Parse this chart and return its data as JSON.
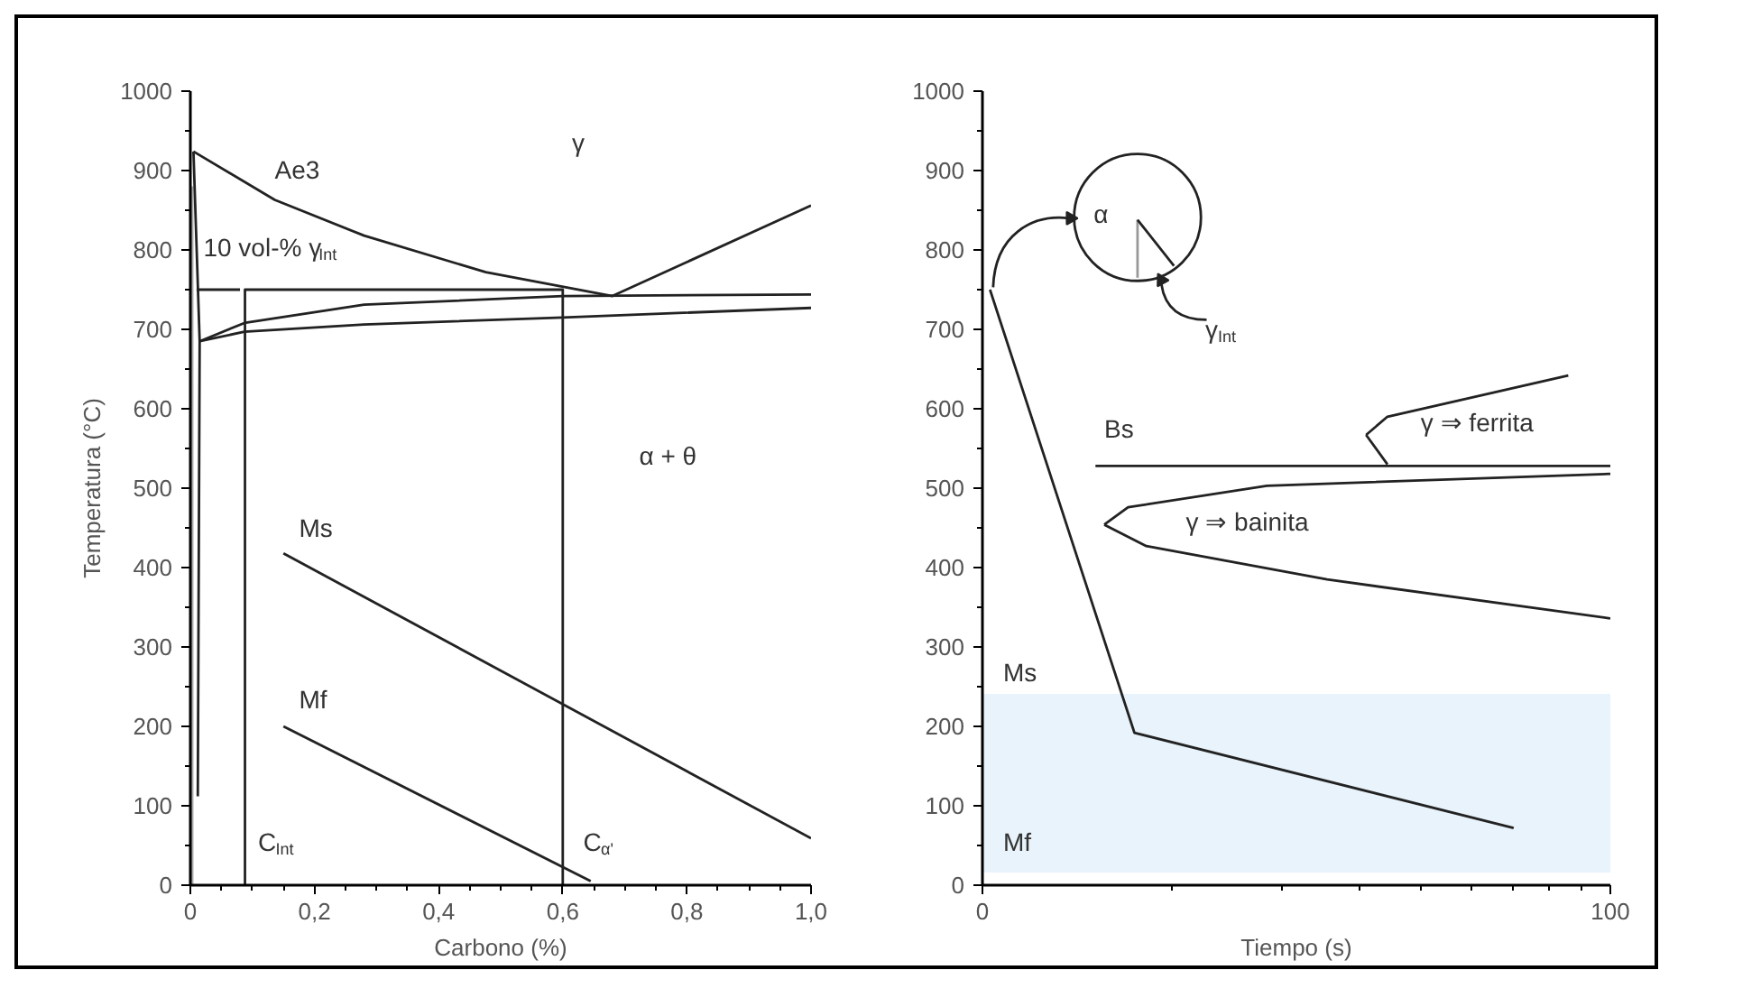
{
  "chart_data": [
    {
      "type": "line",
      "xlabel": "Carbono (%)",
      "ylabel": "Temperatura (°C)",
      "xlim": [
        0,
        1.0
      ],
      "ylim": [
        0,
        1000
      ],
      "xticks": [
        0,
        {
          "value": 0.05,
          "label": null
        },
        {
          "value": 0.2,
          "label": "0,2"
        },
        {
          "value": 0.1,
          "label": null
        },
        {
          "value": 0.15,
          "label": null
        },
        {
          "value": 0.25,
          "label": null
        },
        {
          "value": 0.3,
          "label": null
        },
        {
          "value": 0.35,
          "label": null
        },
        {
          "value": 0.4,
          "label": "0,4"
        },
        {
          "value": 0.45,
          "label": null
        },
        {
          "value": 0.5,
          "label": null
        },
        {
          "value": 0.55,
          "label": null
        },
        {
          "value": 0.6,
          "label": "0,6"
        },
        {
          "value": 0.65,
          "label": null
        },
        {
          "value": 0.7,
          "label": null
        },
        {
          "value": 0.75,
          "label": null
        },
        {
          "value": 0.8,
          "label": "0,8"
        },
        {
          "value": 0.85,
          "label": null
        },
        {
          "value": 0.9,
          "label": null
        },
        {
          "value": 0.95,
          "label": null
        },
        {
          "value": 1.0,
          "label": "1,0"
        }
      ],
      "yticks": [
        0,
        100,
        200,
        300,
        400,
        500,
        600,
        700,
        800,
        900,
        1000,
        {
          "value": 50,
          "label": null
        },
        {
          "value": 150,
          "label": null
        },
        {
          "value": 250,
          "label": null
        },
        {
          "value": 350,
          "label": null
        },
        {
          "value": 450,
          "label": null
        },
        {
          "value": 550,
          "label": null
        },
        {
          "value": 650,
          "label": null
        },
        {
          "value": 750,
          "label": null
        },
        {
          "value": 850,
          "label": null
        },
        {
          "value": 950,
          "label": null
        }
      ],
      "marker": "none",
      "line_style": "solid",
      "series": [
        {
          "color": "#aaaaaa",
          "x": [
            0.003,
            0.003
          ],
          "values": [
            0,
            880
          ]
        },
        {
          "color": "#222222",
          "x": [
            0.005,
            0.015,
            0.012
          ],
          "values": [
            924,
            685,
            112
          ]
        },
        {
          "color": "#222222",
          "x": [
            0.005,
            0.136,
            0.28,
            0.476,
            0.68,
            1.0
          ],
          "values": [
            924,
            863,
            818,
            772,
            742,
            856
          ]
        },
        {
          "color": "#222222",
          "x": [
            0.015,
            0.087,
            0.28,
            0.6,
            1.0
          ],
          "values": [
            685,
            708,
            731,
            742,
            744
          ]
        },
        {
          "color": "#222222",
          "x": [
            0.015,
            0.087,
            0.28,
            0.6,
            1.0
          ],
          "values": [
            685,
            697,
            706,
            715,
            727
          ]
        },
        {
          "color": "#222222",
          "x": [
            0.088,
            0.088,
            0.6,
            0.6
          ],
          "values": [
            0,
            750,
            750,
            0
          ]
        },
        {
          "color": "#222222",
          "x": [
            0.01,
            0.08
          ],
          "values": [
            750,
            750
          ]
        },
        {
          "color": "#222222",
          "x": [
            0.15,
            1.0
          ],
          "values": [
            418,
            59
          ]
        },
        {
          "color": "#222222",
          "x": [
            0.15,
            0.645
          ],
          "values": [
            200,
            5
          ]
        }
      ],
      "annotations": [
        "Ae3",
        "γ",
        "10 vol-% γ$_{Int}$",
        "α + θ",
        "Ms",
        "Mf",
        "C$_{Int}$",
        "C$_{α'}$"
      ]
    },
    {
      "type": "line",
      "xlabel": "Tiempo (s)",
      "xlim": [
        0,
        100
      ],
      "ylim": [
        0,
        1000
      ],
      "xticks": [
        0,
        {
          "value": 30.1,
          "label": null
        },
        {
          "value": 47.7,
          "label": null
        },
        {
          "value": 60.2,
          "label": null
        },
        {
          "value": 69.9,
          "label": null
        },
        {
          "value": 77.8,
          "label": null
        },
        {
          "value": 84.5,
          "label": null
        },
        {
          "value": 90.3,
          "label": null
        },
        {
          "value": 95.4,
          "label": null
        },
        100
      ],
      "yticks": [
        0,
        100,
        200,
        300,
        400,
        500,
        600,
        700,
        800,
        900,
        1000,
        {
          "value": 50,
          "label": null
        },
        {
          "value": 150,
          "label": null
        },
        {
          "value": 250,
          "label": null
        },
        {
          "value": 350,
          "label": null
        },
        {
          "value": 450,
          "label": null
        },
        {
          "value": 550,
          "label": null
        },
        {
          "value": 650,
          "label": null
        },
        {
          "value": 750,
          "label": null
        },
        {
          "value": 850,
          "label": null
        },
        {
          "value": 950,
          "label": null
        }
      ],
      "marker": "none",
      "line_style": "solid",
      "bands": [
        {
          "axis": "y",
          "from": 16,
          "to": 241,
          "color": "#e8f3fb"
        }
      ],
      "series": [
        {
          "color": "#222222",
          "x": [
            1.2,
            24.2,
            84.6
          ],
          "values": [
            750,
            192,
            72
          ]
        },
        {
          "color": "#222222",
          "x": [
            18,
            100
          ],
          "values": [
            528,
            528
          ]
        },
        {
          "color": "#222222",
          "x": [
            61.1,
            64.5,
            93.3
          ],
          "values": [
            567,
            590,
            642
          ]
        },
        {
          "color": "#222222",
          "x": [
            61.1,
            64.5
          ],
          "values": [
            567,
            530
          ]
        },
        {
          "color": "#222222",
          "x": [
            19.4,
            23.2,
            45.3,
            100
          ],
          "values": [
            454,
            476,
            503,
            518
          ]
        },
        {
          "color": "#222222",
          "x": [
            19.4,
            26.1,
            54.9,
            100
          ],
          "values": [
            454,
            427,
            385,
            336
          ]
        }
      ],
      "annotations": [
        "α",
        "γ$_{Int}$",
        "Bs",
        "γ ⇒ ferrita",
        "γ ⇒ bainita",
        "Ms",
        "Mf"
      ]
    }
  ]
}
